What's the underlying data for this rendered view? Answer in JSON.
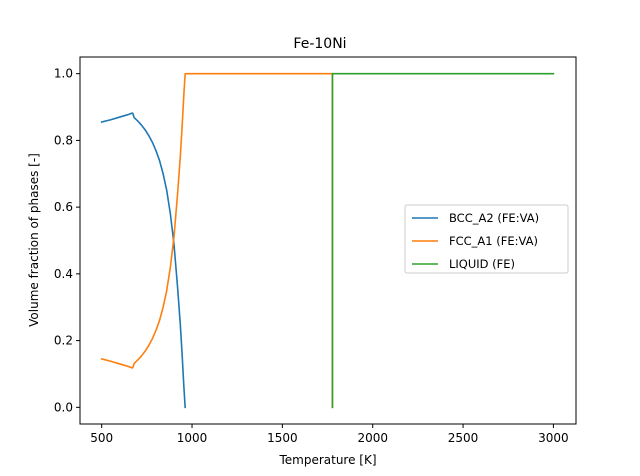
{
  "chart_data": {
    "type": "line",
    "title": "Fe-10Ni",
    "xlabel": "Temperature [K]",
    "ylabel": "Volume fraction of phases [-]",
    "xlim": [
      380,
      3125
    ],
    "ylim": [
      -0.05,
      1.05
    ],
    "xticks": [
      500,
      1000,
      1500,
      2000,
      2500,
      3000
    ],
    "yticks": [
      0.0,
      0.2,
      0.4,
      0.6,
      0.8,
      1.0
    ],
    "xtick_labels": [
      "500",
      "1000",
      "1500",
      "2000",
      "2500",
      "3000"
    ],
    "ytick_labels": [
      "0.0",
      "0.2",
      "0.4",
      "0.6",
      "0.8",
      "1.0"
    ],
    "grid": false,
    "legend_position": "center-right",
    "series": [
      {
        "name": "BCC_A2  (FE:VA)",
        "color": "#1f77b4",
        "x": [
          500,
          550,
          600,
          650,
          670,
          673,
          680,
          700,
          720,
          740,
          760,
          780,
          800,
          820,
          840,
          860,
          880,
          900,
          920,
          935,
          945,
          955,
          962
        ],
        "y": [
          0.855,
          0.862,
          0.87,
          0.878,
          0.882,
          0.88,
          0.868,
          0.858,
          0.846,
          0.832,
          0.815,
          0.795,
          0.77,
          0.74,
          0.7,
          0.65,
          0.58,
          0.49,
          0.36,
          0.25,
          0.16,
          0.06,
          0.0
        ]
      },
      {
        "name": "FCC_A1  (FE:VA)",
        "color": "#ff7f0e",
        "x": [
          500,
          550,
          600,
          650,
          670,
          673,
          680,
          700,
          720,
          740,
          760,
          780,
          800,
          820,
          840,
          860,
          880,
          900,
          920,
          935,
          945,
          955,
          962,
          1777,
          1777
        ],
        "y": [
          0.145,
          0.138,
          0.13,
          0.122,
          0.118,
          0.12,
          0.132,
          0.142,
          0.154,
          0.168,
          0.185,
          0.205,
          0.23,
          0.26,
          0.3,
          0.35,
          0.42,
          0.51,
          0.64,
          0.75,
          0.84,
          0.94,
          1.0,
          1.0,
          0.0
        ]
      },
      {
        "name": "LIQUID  (FE)",
        "color": "#2ca02c",
        "x": [
          1777,
          1777,
          3000
        ],
        "y": [
          0.0,
          1.0,
          1.0
        ]
      }
    ]
  }
}
